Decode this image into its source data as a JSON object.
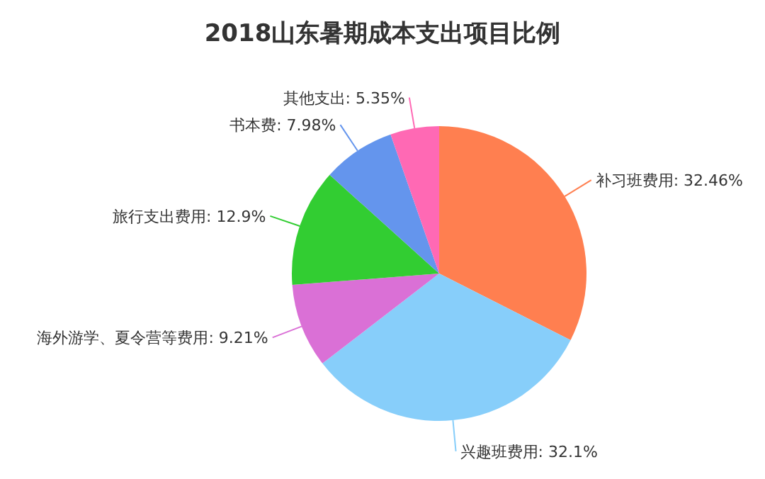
{
  "chart_data": {
    "type": "pie",
    "title": "2018山东暑期成本支出项目比例",
    "categories": [
      "补习班费用",
      "兴趣班费用",
      "海外游学、夏令营等费用",
      "旅行支出费用",
      "书本费",
      "其他支出"
    ],
    "values": [
      32.46,
      32.1,
      9.21,
      12.9,
      7.98,
      5.35
    ],
    "value_labels": [
      "32.46%",
      "32.1%",
      "9.21%",
      "12.9%",
      "7.98%",
      "5.35%"
    ],
    "colors": [
      "#ff7f50",
      "#87cefa",
      "#da70d6",
      "#32cd32",
      "#6495ed",
      "#ff69b4"
    ],
    "legend": false
  }
}
